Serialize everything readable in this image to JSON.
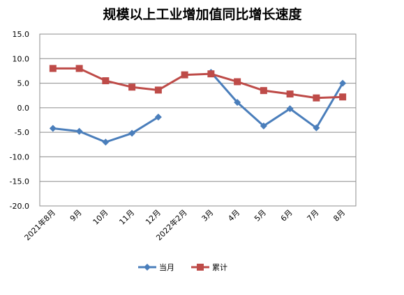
{
  "chart_data": {
    "type": "line",
    "title": "规模以上工业增加值同比增长速度",
    "categories": [
      "2021年8月",
      "9月",
      "10月",
      "11月",
      "12月",
      "2022年2月",
      "3月",
      "4月",
      "5月",
      "6月",
      "7月",
      "8月"
    ],
    "yticks": [
      "15.0",
      "10.0",
      "5.0",
      "0.0",
      "-5.0",
      "-10.0",
      "-15.0",
      "-20.0"
    ],
    "ylim": [
      -20,
      15
    ],
    "grid": true,
    "legend_position": "bottom",
    "series": [
      {
        "name": "当月",
        "color": "#4a7ebb",
        "marker": "diamond",
        "values": [
          -4.2,
          -4.8,
          -7.0,
          -5.2,
          -1.9,
          null,
          7.2,
          1.1,
          -3.7,
          -0.2,
          -4.1,
          5.0
        ]
      },
      {
        "name": "累计",
        "color": "#be4b48",
        "marker": "square",
        "values": [
          8.0,
          8.0,
          5.5,
          4.2,
          3.6,
          6.7,
          6.9,
          5.3,
          3.5,
          2.8,
          2.0,
          2.2
        ]
      }
    ]
  }
}
